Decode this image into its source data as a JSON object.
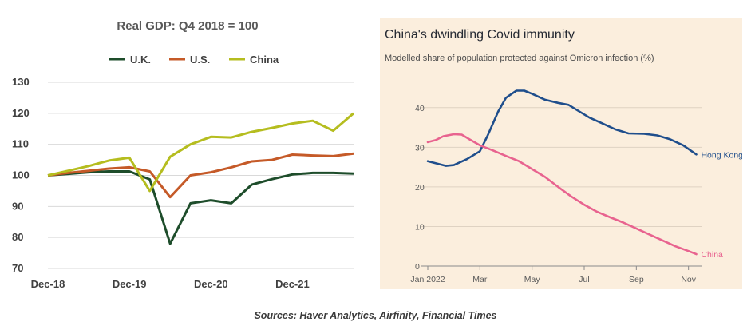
{
  "chart_data": [
    {
      "type": "line",
      "title": "Real GDP: Q4 2018 = 100",
      "xlabel": "",
      "ylabel": "",
      "x_tick_labels": [
        "Dec-18",
        "Dec-19",
        "Dec-20",
        "Dec-21"
      ],
      "y_ticks": [
        70,
        80,
        90,
        100,
        110,
        120,
        130
      ],
      "ylim": [
        70,
        130
      ],
      "grid": true,
      "legend_placement": "top",
      "series": [
        {
          "name": "U.K.",
          "color": "#1e4d2b",
          "values": [
            100,
            100.5,
            101,
            101.3,
            101.3,
            98.7,
            78,
            91,
            92,
            91,
            97,
            98.8,
            100.3,
            100.8,
            100.8,
            100.6
          ]
        },
        {
          "name": "U.S.",
          "color": "#c55a28",
          "values": [
            100,
            100.8,
            101.5,
            102.2,
            102.6,
            101.3,
            93,
            100,
            101,
            102.6,
            104.5,
            105,
            106.7,
            106.4,
            106.2,
            107
          ]
        },
        {
          "name": "China",
          "color": "#b5bd1f",
          "values": [
            100,
            101.5,
            103,
            104.8,
            105.7,
            95,
            106,
            110,
            112.4,
            112.2,
            114,
            115.3,
            116.7,
            117.6,
            114.4,
            120
          ]
        }
      ]
    },
    {
      "type": "line",
      "title": "China's dwindling Covid immunity",
      "subtitle": "Modelled share of population protected against Omicron infection (%)",
      "xlabel": "",
      "ylabel": "",
      "x_tick_labels": [
        "Jan 2022",
        "Mar",
        "May",
        "Jul",
        "Sep",
        "Nov"
      ],
      "y_ticks": [
        0,
        10,
        20,
        30,
        40
      ],
      "ylim": [
        0,
        45
      ],
      "grid": true,
      "series": [
        {
          "name": "Hong Kong",
          "color": "#1f4e8c",
          "points": [
            [
              0,
              26.5
            ],
            [
              0.3,
              26
            ],
            [
              0.7,
              25.3
            ],
            [
              1.0,
              25.5
            ],
            [
              1.5,
              27
            ],
            [
              2.0,
              29
            ],
            [
              2.3,
              33
            ],
            [
              2.7,
              39
            ],
            [
              3.0,
              42.5
            ],
            [
              3.4,
              44.3
            ],
            [
              3.7,
              44.3
            ],
            [
              4.0,
              43.5
            ],
            [
              4.5,
              42
            ],
            [
              5.0,
              41.2
            ],
            [
              5.4,
              40.7
            ],
            [
              5.7,
              39.5
            ],
            [
              6.2,
              37.5
            ],
            [
              6.7,
              36
            ],
            [
              7.2,
              34.5
            ],
            [
              7.7,
              33.5
            ],
            [
              8.3,
              33.4
            ],
            [
              8.8,
              33
            ],
            [
              9.3,
              32
            ],
            [
              9.8,
              30.5
            ],
            [
              10.3,
              28.2
            ]
          ]
        },
        {
          "name": "China",
          "color": "#e8638f",
          "points": [
            [
              0,
              31.3
            ],
            [
              0.3,
              31.8
            ],
            [
              0.6,
              32.8
            ],
            [
              1.0,
              33.3
            ],
            [
              1.3,
              33.2
            ],
            [
              1.6,
              32
            ],
            [
              2.0,
              30.5
            ],
            [
              2.5,
              29.2
            ],
            [
              3.0,
              27.8
            ],
            [
              3.5,
              26.5
            ],
            [
              4.0,
              24.5
            ],
            [
              4.5,
              22.5
            ],
            [
              5.0,
              20
            ],
            [
              5.5,
              17.6
            ],
            [
              6.0,
              15.5
            ],
            [
              6.5,
              13.7
            ],
            [
              7.0,
              12.3
            ],
            [
              7.5,
              11
            ],
            [
              8.0,
              9.5
            ],
            [
              8.5,
              8
            ],
            [
              9.0,
              6.5
            ],
            [
              9.5,
              5
            ],
            [
              10.0,
              3.8
            ],
            [
              10.3,
              3
            ]
          ]
        }
      ]
    }
  ],
  "sources": "Sources: Haver Analytics, Airfinity, Financial Times"
}
